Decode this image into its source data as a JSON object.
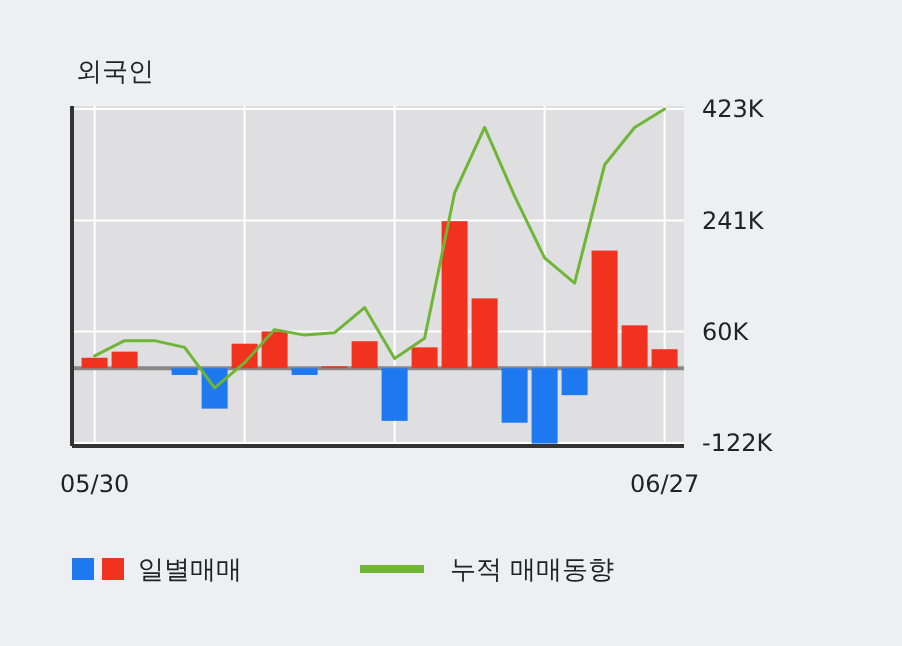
{
  "chart_data": {
    "type": "bar",
    "title": "외국인",
    "categories": [
      "05/30",
      null,
      null,
      null,
      null,
      null,
      null,
      null,
      null,
      null,
      null,
      null,
      null,
      null,
      null,
      null,
      null,
      null,
      null,
      "06/27"
    ],
    "series": [
      {
        "name": "일별매매",
        "colors": [
          "#f0321e",
          "#f0321e",
          "#f0321e",
          "#1e78f0",
          "#1e78f0",
          "#f0321e",
          "#f0321e",
          "#1e78f0",
          "#f0321e",
          "#f0321e",
          "#1e78f0",
          "#f0321e",
          "#f0321e",
          "#f0321e",
          "#1e78f0",
          "#1e78f0",
          "#1e78f0",
          "#f0321e",
          "#f0321e",
          "#f0321e"
        ],
        "values": [
          17,
          27,
          0,
          -11,
          -66,
          40,
          60,
          -11,
          3,
          44,
          -86,
          34,
          240,
          114,
          -89,
          -123,
          -44,
          192,
          70,
          31
        ]
      },
      {
        "name": "누적 매매동향",
        "type": "line",
        "color": "#6fb536",
        "values": [
          20,
          45,
          45,
          34,
          -32,
          9,
          63,
          54,
          58,
          99,
          16,
          49,
          286,
          393,
          281,
          180,
          139,
          332,
          393,
          423
        ]
      }
    ],
    "ylim": [
      -127,
      428
    ],
    "yticks": [
      {
        "value": 423,
        "label": "423K"
      },
      {
        "value": 241,
        "label": "241K"
      },
      {
        "value": 60,
        "label": "60K"
      },
      {
        "value": -122,
        "label": "-122K"
      }
    ],
    "grid": true,
    "legend": "bottom"
  }
}
